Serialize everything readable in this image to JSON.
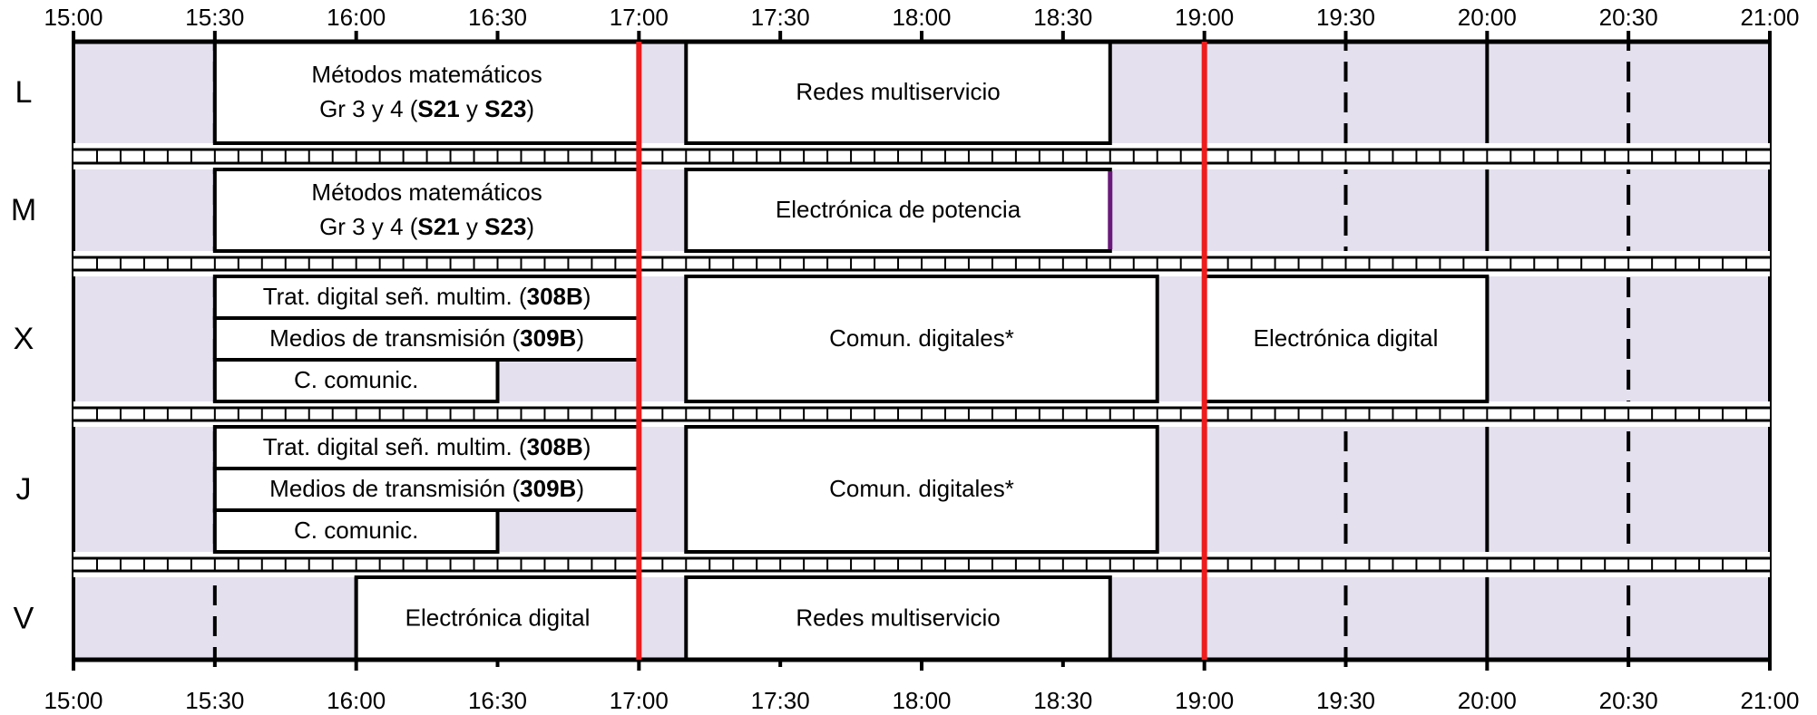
{
  "time_labels": [
    "15:00",
    "15:30",
    "16:00",
    "16:30",
    "17:00",
    "17:30",
    "18:00",
    "18:30",
    "19:00",
    "19:30",
    "20:00",
    "20:30",
    "21:00"
  ],
  "colors": {
    "free": "#e4e0ee",
    "class": "#ffffff",
    "line": "#000000",
    "marker": "#ee1c1c",
    "purple": "#6a1a7a"
  },
  "markers": [
    "17:00",
    "19:00"
  ],
  "days": [
    {
      "label": "L",
      "classes": [
        {
          "start": "15:30",
          "end": "17:00",
          "parts": [
            {
              "line": 0,
              "segs": [
                {
                  "t": "Métodos matemáticos"
                }
              ]
            },
            {
              "line": 1,
              "segs": [
                {
                  "t": "Gr 3 y 4 ("
                },
                {
                  "t": "S21",
                  "b": true
                },
                {
                  "t": " y "
                },
                {
                  "t": "S23",
                  "b": true
                },
                {
                  "t": ")"
                }
              ]
            }
          ]
        },
        {
          "start": "17:10",
          "end": "18:40",
          "parts": [
            {
              "line": 0,
              "segs": [
                {
                  "t": "Redes multiservicio"
                }
              ]
            }
          ]
        }
      ]
    },
    {
      "label": "M",
      "classes": [
        {
          "start": "15:30",
          "end": "17:00",
          "parts": [
            {
              "line": 0,
              "segs": [
                {
                  "t": "Métodos matemáticos"
                }
              ]
            },
            {
              "line": 1,
              "segs": [
                {
                  "t": "Gr 3 y 4 ("
                },
                {
                  "t": "S21",
                  "b": true
                },
                {
                  "t": " y "
                },
                {
                  "t": "S23",
                  "b": true
                },
                {
                  "t": ")"
                }
              ]
            }
          ]
        },
        {
          "start": "17:10",
          "end": "18:40",
          "parts": [
            {
              "line": 0,
              "segs": [
                {
                  "t": "Electrónica de potencia"
                }
              ]
            }
          ]
        }
      ]
    },
    {
      "label": "X",
      "classes": [
        {
          "start": "15:30",
          "end": "17:00",
          "sub": 0,
          "parts": [
            {
              "line": 0,
              "segs": [
                {
                  "t": "Trat. digital señ. multim. ("
                },
                {
                  "t": "308B",
                  "b": true
                },
                {
                  "t": ")"
                }
              ]
            }
          ]
        },
        {
          "start": "15:30",
          "end": "17:00",
          "sub": 1,
          "parts": [
            {
              "line": 0,
              "segs": [
                {
                  "t": "Medios de transmisión  ("
                },
                {
                  "t": "309B",
                  "b": true
                },
                {
                  "t": ")"
                }
              ]
            }
          ]
        },
        {
          "start": "15:30",
          "end": "16:30",
          "sub": 2,
          "parts": [
            {
              "line": 0,
              "segs": [
                {
                  "t": "C. comunic."
                }
              ]
            }
          ]
        },
        {
          "start": "17:10",
          "end": "18:50",
          "parts": [
            {
              "line": 0,
              "segs": [
                {
                  "t": "Comun. digitales*"
                }
              ]
            }
          ]
        },
        {
          "start": "19:00",
          "end": "20:00",
          "parts": [
            {
              "line": 0,
              "segs": [
                {
                  "t": "Electrónica digital"
                }
              ]
            }
          ]
        }
      ]
    },
    {
      "label": "J",
      "classes": [
        {
          "start": "15:30",
          "end": "17:00",
          "sub": 0,
          "parts": [
            {
              "line": 0,
              "segs": [
                {
                  "t": "Trat. digital señ. multim. ("
                },
                {
                  "t": "308B",
                  "b": true
                },
                {
                  "t": ")"
                }
              ]
            }
          ]
        },
        {
          "start": "15:30",
          "end": "17:00",
          "sub": 1,
          "parts": [
            {
              "line": 0,
              "segs": [
                {
                  "t": "Medios de transmisión  ("
                },
                {
                  "t": "309B",
                  "b": true
                },
                {
                  "t": ")"
                }
              ]
            }
          ]
        },
        {
          "start": "15:30",
          "end": "16:30",
          "sub": 2,
          "parts": [
            {
              "line": 0,
              "segs": [
                {
                  "t": "C. comunic."
                }
              ]
            }
          ]
        },
        {
          "start": "17:10",
          "end": "18:50",
          "parts": [
            {
              "line": 0,
              "segs": [
                {
                  "t": "Comun. digitales*"
                }
              ]
            }
          ]
        }
      ]
    },
    {
      "label": "V",
      "classes": [
        {
          "start": "16:00",
          "end": "17:00",
          "parts": [
            {
              "line": 0,
              "segs": [
                {
                  "t": "Electrónica digital"
                }
              ]
            }
          ]
        },
        {
          "start": "17:10",
          "end": "18:40",
          "parts": [
            {
              "line": 0,
              "segs": [
                {
                  "t": "Redes multiservicio"
                }
              ]
            }
          ]
        }
      ]
    }
  ]
}
